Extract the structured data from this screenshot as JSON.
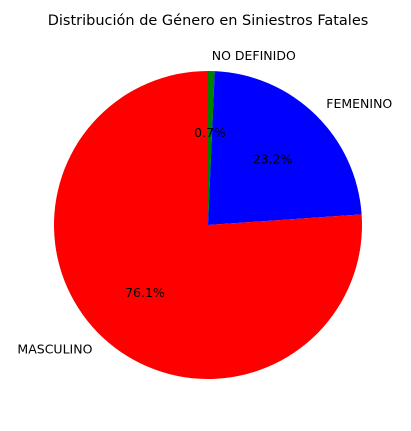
{
  "chart_data": {
    "type": "pie",
    "title": "Distribución de Género en Siniestros Fatales",
    "start_angle_deg": 90,
    "direction": "clockwise",
    "slices": [
      {
        "label": "NO DEFINIDO",
        "value": 0.7,
        "pct_label": "0.7%",
        "color": "#008000"
      },
      {
        "label": "FEMENINO",
        "value": 23.2,
        "pct_label": "23.2%",
        "color": "#0000ff"
      },
      {
        "label": "MASCULINO",
        "value": 76.1,
        "pct_label": "76.1%",
        "color": "#ff0000"
      }
    ]
  }
}
